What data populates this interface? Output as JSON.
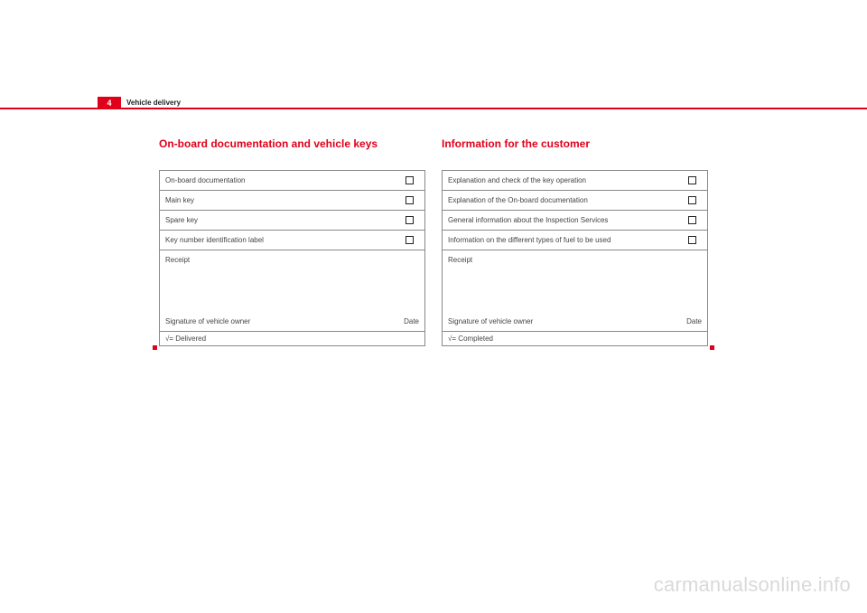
{
  "header": {
    "page_number": "4",
    "section_title": "Vehicle delivery",
    "accent_color": "#e0001a"
  },
  "left": {
    "heading": "On-board documentation and vehicle keys",
    "items": [
      "On-board documentation",
      "Main key",
      "Spare key",
      "Key number identification label"
    ],
    "receipt_label": "Receipt",
    "signature_label": "Signature of vehicle owner",
    "date_label": "Date",
    "legend": "√= Delivered"
  },
  "right": {
    "heading": "Information for the customer",
    "items": [
      "Explanation and check of the key operation",
      "Explanation of the On-board documentation",
      "General information about the Inspection Services",
      "Information on the different types of fuel to be used"
    ],
    "receipt_label": "Receipt",
    "signature_label": "Signature of vehicle owner",
    "date_label": "Date",
    "legend": "√= Completed"
  },
  "watermark": "carmanualsonline.info"
}
